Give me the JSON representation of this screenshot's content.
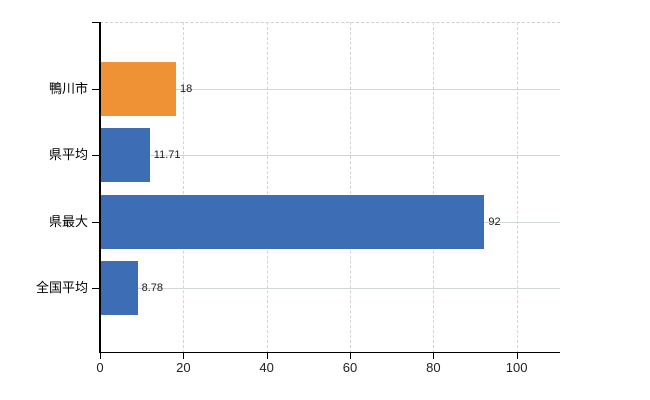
{
  "chart_data": {
    "type": "bar",
    "orientation": "horizontal",
    "title": "",
    "categories": [
      "鴨川市",
      "県平均",
      "県最大",
      "全国平均"
    ],
    "values": [
      18,
      11.71,
      92,
      8.78
    ],
    "value_labels": [
      "18",
      "11.71",
      "92",
      "8.78"
    ],
    "bar_colors": [
      "#ee9235",
      "#3d6db5",
      "#3d6db5",
      "#3d6db5"
    ],
    "x_ticks": [
      0,
      20,
      40,
      60,
      80,
      100
    ],
    "x_tick_labels": [
      "0",
      "20",
      "40",
      "60",
      "80",
      "100"
    ],
    "xlim": [
      0,
      110.4
    ],
    "legend": "none",
    "grid": {
      "vertical": "dashed",
      "horizontal": "solid"
    },
    "colors": {
      "highlight_bar": "#ee9235",
      "default_bar": "#3d6db5",
      "grid_vertical": "#d4d4d4",
      "grid_horizontal": "#d0d6d0",
      "axis": "#000000",
      "background": "#ffffff"
    }
  }
}
